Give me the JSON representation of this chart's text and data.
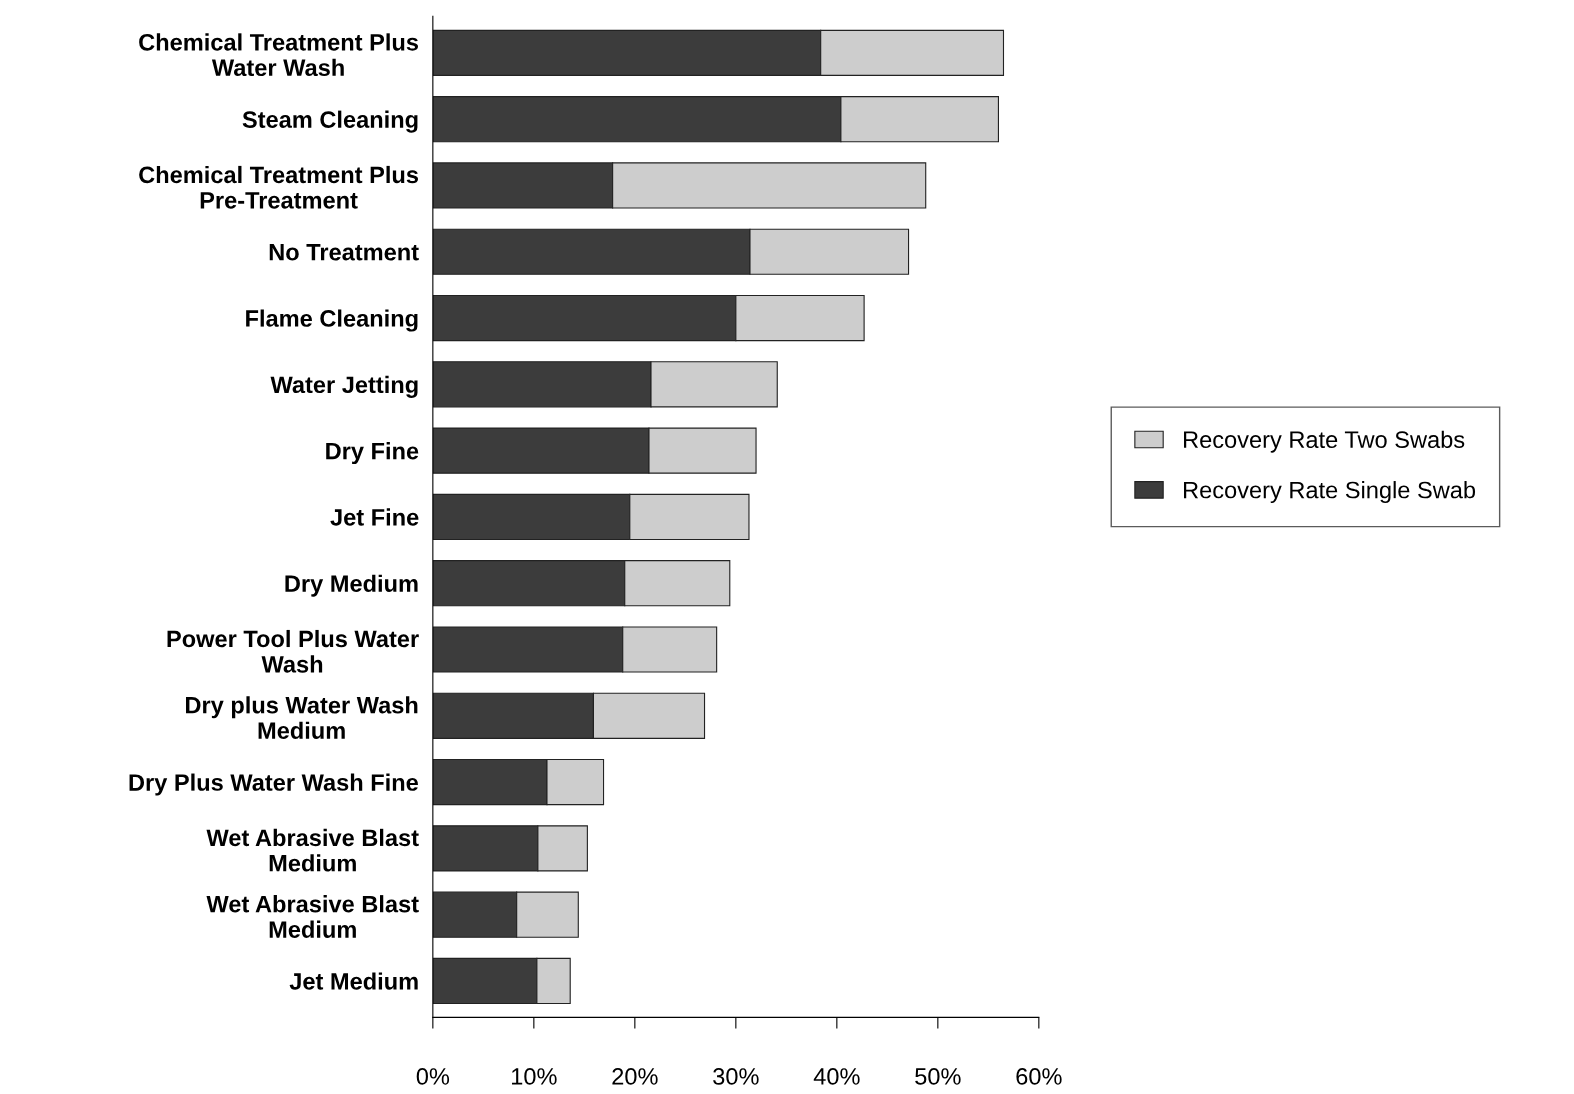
{
  "chart_data": {
    "type": "bar",
    "orientation": "horizontal",
    "stacked": true,
    "categories": [
      "Chemical Treatment Plus\nWater Wash",
      "Steam Cleaning",
      "Chemical Treatment Plus\nPre-Treatment",
      "No Treatment",
      "Flame Cleaning",
      "Water Jetting",
      "Dry Fine",
      "Jet Fine",
      "Dry Medium",
      "Power Tool Plus Water\nWash",
      "Dry plus Water Wash\nMedium",
      "Dry Plus Water Wash Fine",
      "Wet Abrasive Blast\nMedium",
      "Wet Abrasive Blast\nMedium",
      "Jet Medium"
    ],
    "series": [
      {
        "name": "Recovery Rate Single Swab",
        "color": "#3c3c3c",
        "values": [
          38.4,
          40.4,
          17.8,
          31.4,
          30.0,
          21.6,
          21.4,
          19.5,
          19.0,
          18.8,
          15.9,
          11.3,
          10.4,
          8.3,
          10.3
        ]
      },
      {
        "name": "Recovery Rate Two Swabs",
        "color": "#cdcdcd",
        "values": [
          18.1,
          15.6,
          31.0,
          15.7,
          12.7,
          12.5,
          10.6,
          11.8,
          10.4,
          9.3,
          11.0,
          5.6,
          4.9,
          6.1,
          3.3
        ]
      }
    ],
    "xlim": [
      0,
      60
    ],
    "xticks": [
      {
        "value": 0,
        "label": "0%"
      },
      {
        "value": 10,
        "label": "10%"
      },
      {
        "value": 20,
        "label": "20%"
      },
      {
        "value": 30,
        "label": "30%"
      },
      {
        "value": 40,
        "label": "40%"
      },
      {
        "value": 50,
        "label": "50%"
      },
      {
        "value": 60,
        "label": "60%"
      }
    ],
    "grid": false,
    "legend": "right"
  }
}
